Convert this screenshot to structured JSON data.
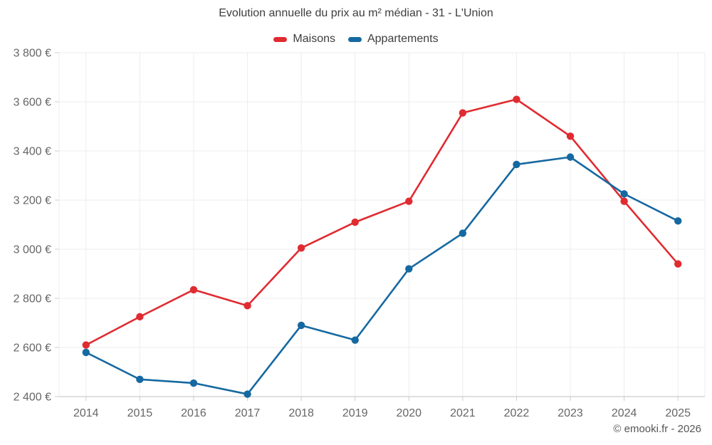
{
  "header": {
    "title": "Evolution annuelle du prix au m² médian - 31 - L'Union",
    "legend": [
      {
        "label": "Maisons",
        "color": "#e02b30"
      },
      {
        "label": "Appartements",
        "color": "#1669a0"
      }
    ]
  },
  "footer": {
    "credit": "© emooki.fr - 2026"
  },
  "chart_data": {
    "type": "line",
    "title": "Evolution annuelle du prix au m² médian - 31 - L'Union",
    "x": [
      2014,
      2015,
      2016,
      2017,
      2018,
      2019,
      2020,
      2021,
      2022,
      2023,
      2024,
      2025
    ],
    "x_labels": [
      "2014",
      "2015",
      "2016",
      "2017",
      "2018",
      "2019",
      "2020",
      "2021",
      "2022",
      "2023",
      "2024",
      "2025"
    ],
    "series": [
      {
        "name": "Maisons",
        "color": "#e02b30",
        "values": [
          2610,
          2725,
          2835,
          2770,
          3005,
          3110,
          3195,
          3555,
          3610,
          3460,
          3195,
          2940
        ]
      },
      {
        "name": "Appartements",
        "color": "#1669a0",
        "values": [
          2580,
          2470,
          2455,
          2410,
          2690,
          2630,
          2920,
          3065,
          3345,
          3375,
          3225,
          3115
        ]
      }
    ],
    "ylim": [
      2400,
      3800
    ],
    "yticks": [
      2400,
      2600,
      2800,
      3000,
      3200,
      3400,
      3600,
      3800
    ],
    "ytick_labels": [
      "2 400 €",
      "2 600 €",
      "2 800 €",
      "3 000 €",
      "3 200 €",
      "3 400 €",
      "3 600 €",
      "3 800 €"
    ],
    "xlabel": "",
    "ylabel": "",
    "grid": true,
    "legend_position": "top",
    "grid_color": "#ededed",
    "axis_color": "#cccccc",
    "tick_text_color": "#666666"
  }
}
